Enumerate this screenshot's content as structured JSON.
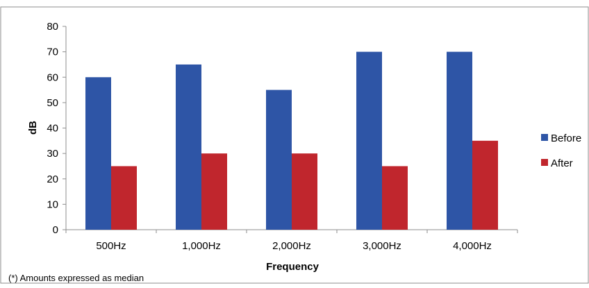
{
  "chart_data": {
    "type": "bar",
    "title": "",
    "xlabel": "Frequency",
    "ylabel": "dB",
    "categories": [
      "500Hz",
      "1,000Hz",
      "2,000Hz",
      "3,000Hz",
      "4,000Hz"
    ],
    "series": [
      {
        "name": "Before",
        "values": [
          60,
          65,
          55,
          70,
          70
        ],
        "color": "#2E55A6"
      },
      {
        "name": "After",
        "values": [
          25,
          30,
          30,
          25,
          35
        ],
        "color": "#C0262D"
      }
    ],
    "ylim": [
      0,
      80
    ],
    "yticks": [
      0,
      10,
      20,
      30,
      40,
      50,
      60,
      70,
      80
    ],
    "grid": false,
    "legend_position": "right",
    "footnote": "(*) Amounts expressed as median"
  }
}
